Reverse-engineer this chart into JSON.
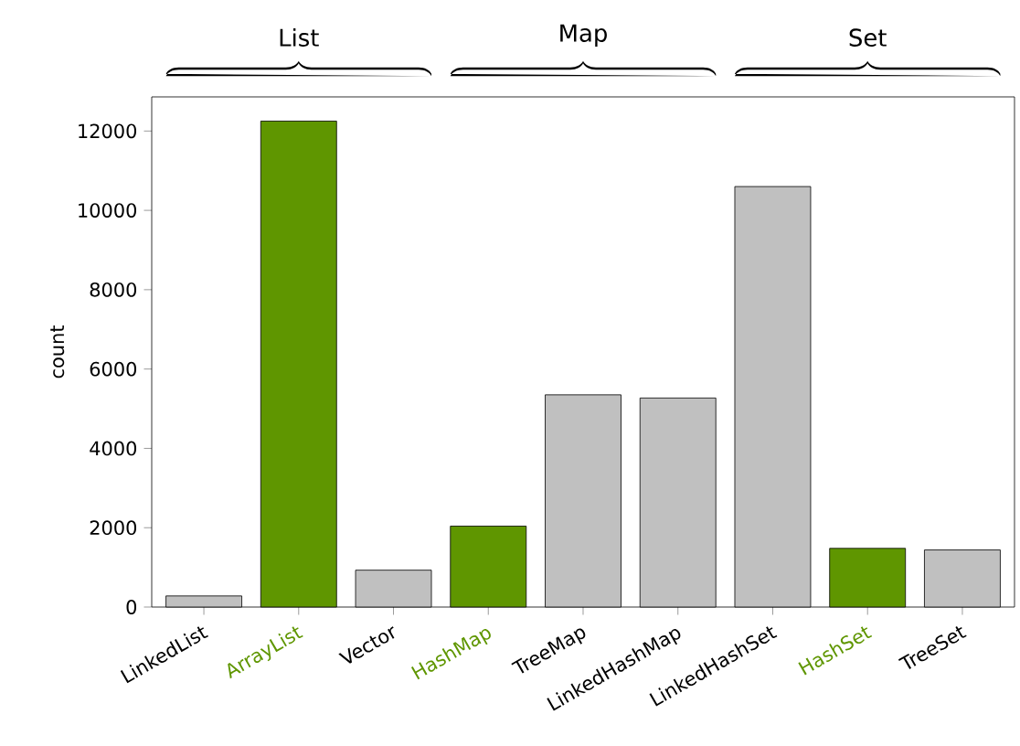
{
  "chart_data": {
    "type": "bar",
    "ylabel": "count",
    "categories": [
      "LinkedList",
      "ArrayList",
      "Vector",
      "HashMap",
      "TreeMap",
      "LinkedHashMap",
      "LinkedHashSet",
      "HashSet",
      "TreeSet"
    ],
    "values": [
      280,
      12250,
      930,
      2040,
      5350,
      5270,
      10600,
      1480,
      1440
    ],
    "colors": [
      "#c0c0c0",
      "#5f9600",
      "#c0c0c0",
      "#5f9600",
      "#c0c0c0",
      "#c0c0c0",
      "#c0c0c0",
      "#5f9600",
      "#c0c0c0"
    ],
    "annotations": [
      "List",
      "Map",
      "Set"
    ],
    "ylim": [
      0,
      12860
    ],
    "yticks": [
      0,
      2000,
      4000,
      6000,
      8000,
      10000,
      12000
    ],
    "grid": false
  }
}
